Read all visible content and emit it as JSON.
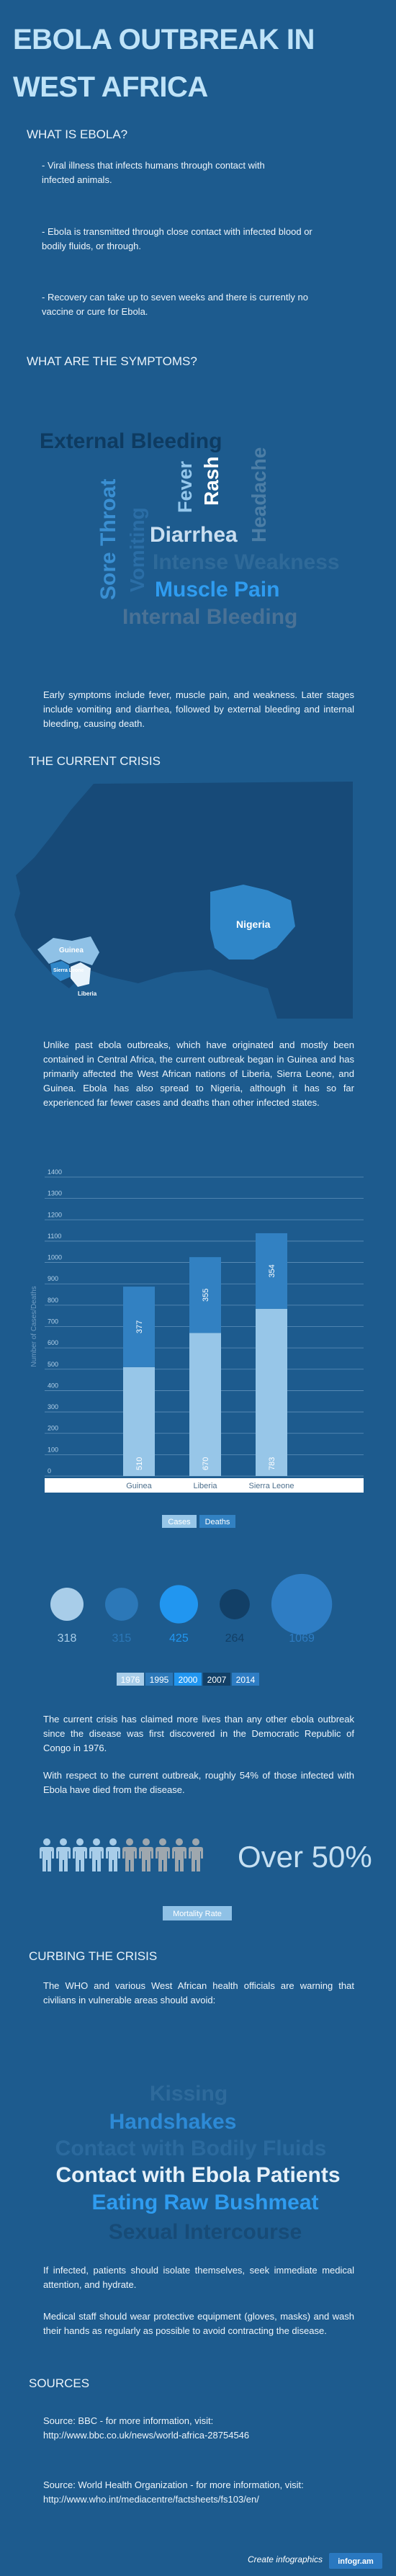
{
  "header": {
    "title": "EBOLA OUTBREAK IN WEST AFRICA"
  },
  "what_is": {
    "heading": "WHAT IS EBOLA?",
    "points": [
      "- Viral illness that infects humans through contact with infected animals.",
      "- Ebola is transmitted through close contact with infected blood or bodily fluids, or through.",
      "- Recovery can take up to seven weeks and there is currently no vaccine or cure for Ebola."
    ]
  },
  "symptoms": {
    "heading": "WHAT ARE THE SYMPTOMS?",
    "words": [
      "External Bleeding",
      "Sore Throat",
      "Vomiting",
      "Fever",
      "Rash",
      "Headache",
      "Diarrhea",
      "Intense Weakness",
      "Muscle Pain",
      "Internal Bleeding"
    ],
    "text": "Early symptoms include fever, muscle pain, and weakness. Later stages include vomiting and diarrhea, followed by external bleeding and internal bleeding, causing death."
  },
  "crisis": {
    "heading": "THE CURRENT CRISIS",
    "map_labels": [
      "Guinea",
      "Sierra Leone",
      "Liberia",
      "Nigeria"
    ],
    "text": "Unlike past ebola outbreaks, which have originated and mostly been contained in Central Africa, the current outbreak began in Guinea and has primarily affected the West African nations of Liberia, Sierra Leone, and Guinea. Ebola has also spread to Nigeria, although it has so far experienced far fewer cases and deaths than other infected states.",
    "history": [
      "The current crisis has claimed more lives than any other ebola outbreak since the disease was first discovered in the Democratic Republic of Congo in 1976.",
      "With respect to the current outbreak, roughly 54% of those infected with Ebola have died from the disease."
    ],
    "mortality_figure": "Over 50%",
    "mortality_label": "Mortality Rate"
  },
  "chart_data": [
    {
      "type": "bar",
      "stacked": true,
      "y_label": "Number of Cases/Deaths",
      "categories": [
        "Guinea",
        "Liberia",
        "Sierra Leone"
      ],
      "series": [
        {
          "name": "Cases",
          "color": "#97c6e8",
          "values": [
            510,
            670,
            783
          ]
        },
        {
          "name": "Deaths",
          "color": "#3281c2",
          "values": [
            377,
            355,
            354
          ]
        }
      ],
      "ylim": [
        0,
        1400
      ],
      "yticks": [
        0,
        100,
        200,
        300,
        400,
        500,
        600,
        700,
        800,
        900,
        1000,
        1100,
        1200,
        1300,
        1400
      ],
      "grid": true
    },
    {
      "type": "bubble",
      "categories": [
        "1976",
        "1995",
        "2000",
        "2007",
        "2014"
      ],
      "values": [
        318,
        315,
        425,
        264,
        1069
      ],
      "colors": [
        "#a8cde9",
        "#2c78b8",
        "#2196f0",
        "#123f66",
        "#2e7dc4"
      ]
    }
  ],
  "curbing": {
    "heading": "CURBING THE CRISIS",
    "intro": "The WHO and various West African health officials are warning that civilians in vulnerable areas should avoid:",
    "avoid": [
      "Kissing",
      "Handshakes",
      "Contact with Bodily Fluids",
      "Contact with Ebola Patients",
      "Eating Raw Bushmeat",
      "Sexual Intercourse"
    ],
    "advice": [
      "If infected, patients should isolate themselves, seek immediate medical attention, and hydrate.",
      "Medical staff should wear protective equipment (gloves, masks) and wash their hands as regularly as possible to avoid contracting the disease."
    ]
  },
  "sources": {
    "heading": "SOURCES",
    "items": [
      "Source: BBC - for more information, visit: http://www.bbc.co.uk/news/world-africa-28754546",
      "Source: World Health Organization - for more information, visit: http://www.who.int/mediacentre/factsheets/fs103/en/"
    ]
  },
  "footer": {
    "create": "Create infographics",
    "brand": "infogr.am"
  }
}
